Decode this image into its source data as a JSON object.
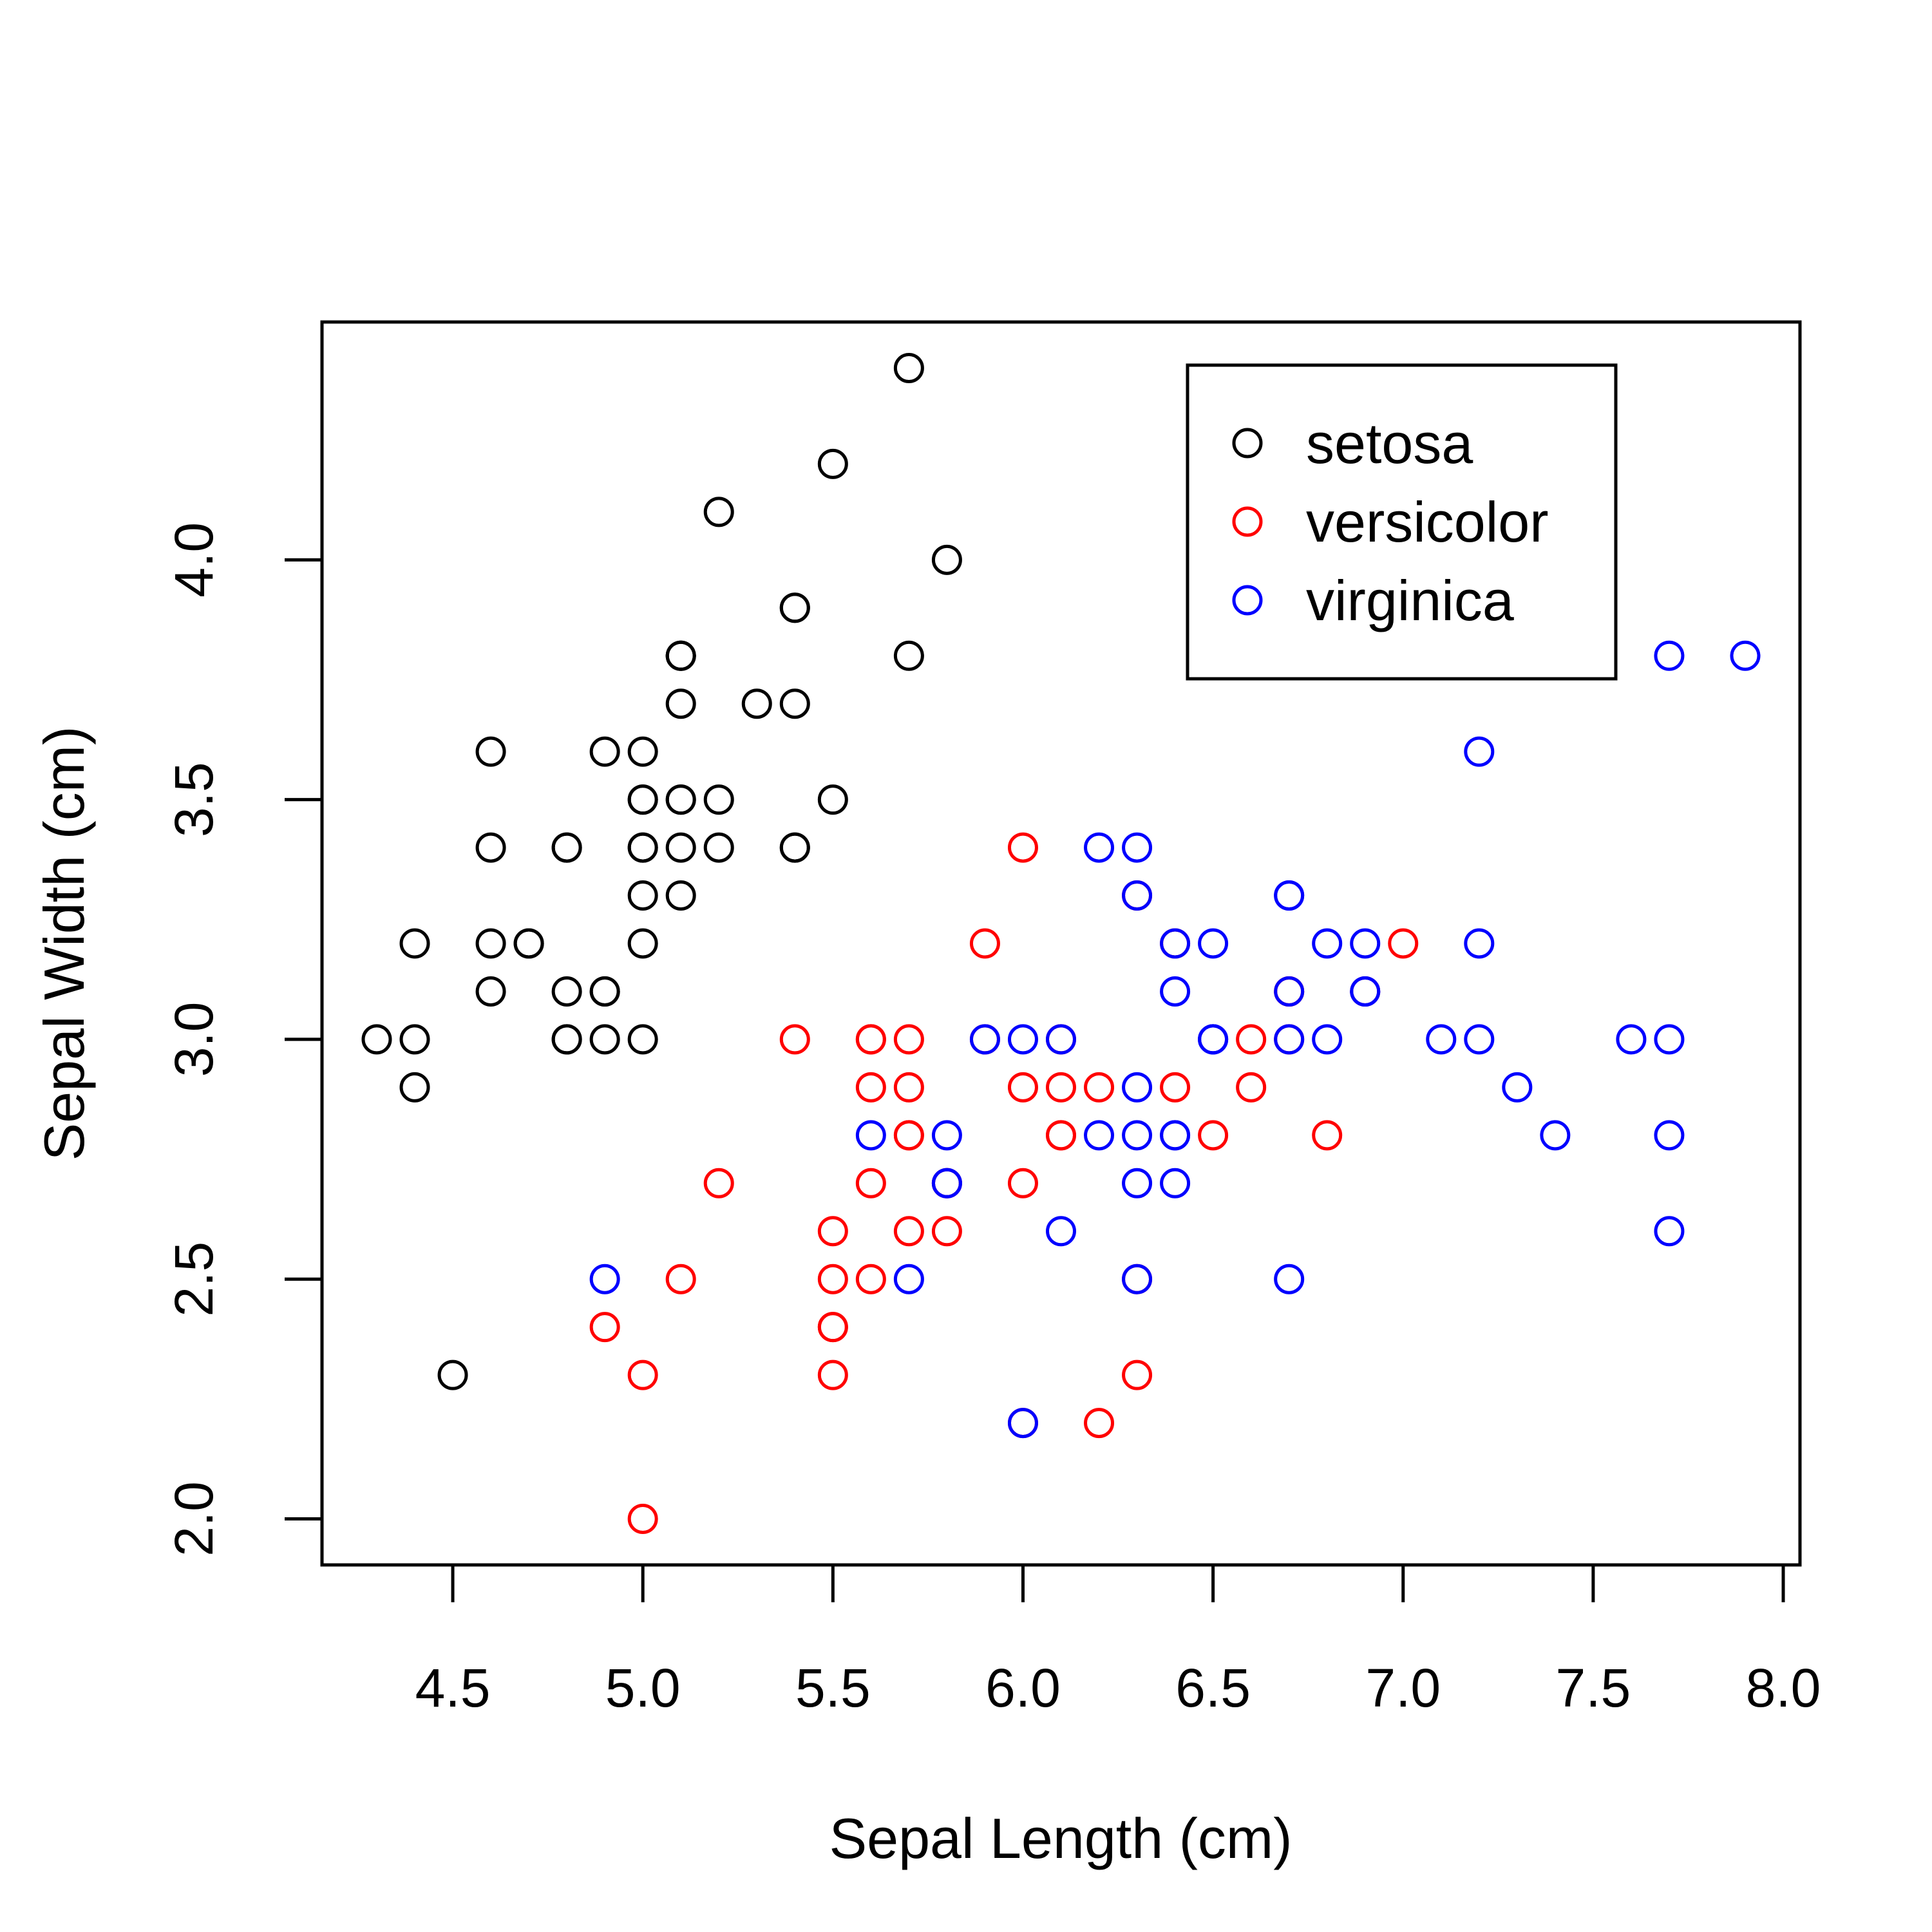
{
  "chart_data": {
    "type": "scatter",
    "title": "",
    "xlabel": "Sepal Length (cm)",
    "ylabel": "Sepal Width (cm)",
    "xlim": [
      4.3,
      7.9
    ],
    "ylim": [
      2.0,
      4.4
    ],
    "xticks": [
      "4.5",
      "5.0",
      "5.5",
      "6.0",
      "6.5",
      "7.0",
      "7.5",
      "8.0"
    ],
    "yticks": [
      "2.0",
      "2.5",
      "3.0",
      "3.5",
      "4.0"
    ],
    "grid": false,
    "legend_position": "top-right",
    "series": [
      {
        "name": "setosa",
        "color": "#000000",
        "marker": "open-circle",
        "points": [
          [
            5.1,
            3.5
          ],
          [
            4.9,
            3.0
          ],
          [
            4.7,
            3.2
          ],
          [
            4.6,
            3.1
          ],
          [
            5.0,
            3.6
          ],
          [
            5.4,
            3.9
          ],
          [
            4.6,
            3.4
          ],
          [
            5.0,
            3.4
          ],
          [
            4.4,
            2.9
          ],
          [
            4.9,
            3.1
          ],
          [
            5.4,
            3.7
          ],
          [
            4.8,
            3.4
          ],
          [
            4.8,
            3.0
          ],
          [
            4.3,
            3.0
          ],
          [
            5.8,
            4.0
          ],
          [
            5.7,
            4.4
          ],
          [
            5.4,
            3.9
          ],
          [
            5.1,
            3.5
          ],
          [
            5.7,
            3.8
          ],
          [
            5.1,
            3.8
          ],
          [
            5.4,
            3.4
          ],
          [
            5.1,
            3.7
          ],
          [
            4.6,
            3.6
          ],
          [
            5.1,
            3.3
          ],
          [
            4.8,
            3.4
          ],
          [
            5.0,
            3.0
          ],
          [
            5.0,
            3.4
          ],
          [
            5.2,
            3.5
          ],
          [
            5.2,
            3.4
          ],
          [
            4.7,
            3.2
          ],
          [
            4.8,
            3.1
          ],
          [
            5.4,
            3.4
          ],
          [
            5.2,
            4.1
          ],
          [
            5.5,
            4.2
          ],
          [
            4.9,
            3.1
          ],
          [
            5.0,
            3.2
          ],
          [
            5.5,
            3.5
          ],
          [
            4.9,
            3.6
          ],
          [
            4.4,
            3.0
          ],
          [
            5.1,
            3.4
          ],
          [
            5.0,
            3.5
          ],
          [
            4.5,
            2.3
          ],
          [
            4.4,
            3.2
          ],
          [
            5.0,
            3.5
          ],
          [
            5.1,
            3.8
          ],
          [
            4.8,
            3.0
          ],
          [
            5.1,
            3.8
          ],
          [
            4.6,
            3.2
          ],
          [
            5.3,
            3.7
          ],
          [
            5.0,
            3.3
          ]
        ]
      },
      {
        "name": "versicolor",
        "color": "#ff0000",
        "marker": "open-circle",
        "points": [
          [
            7.0,
            3.2
          ],
          [
            6.4,
            3.2
          ],
          [
            6.9,
            3.1
          ],
          [
            5.5,
            2.3
          ],
          [
            6.5,
            2.8
          ],
          [
            5.7,
            2.8
          ],
          [
            6.3,
            3.3
          ],
          [
            4.9,
            2.4
          ],
          [
            6.6,
            2.9
          ],
          [
            5.2,
            2.7
          ],
          [
            5.0,
            2.0
          ],
          [
            5.9,
            3.0
          ],
          [
            6.0,
            2.2
          ],
          [
            6.1,
            2.9
          ],
          [
            5.6,
            2.9
          ],
          [
            6.7,
            3.1
          ],
          [
            5.6,
            3.0
          ],
          [
            5.8,
            2.7
          ],
          [
            6.2,
            2.2
          ],
          [
            5.6,
            2.5
          ],
          [
            5.9,
            3.2
          ],
          [
            6.1,
            2.8
          ],
          [
            6.3,
            2.5
          ],
          [
            6.1,
            2.8
          ],
          [
            6.4,
            2.9
          ],
          [
            6.6,
            3.0
          ],
          [
            6.8,
            2.8
          ],
          [
            6.7,
            3.0
          ],
          [
            6.0,
            2.9
          ],
          [
            5.7,
            2.6
          ],
          [
            5.5,
            2.4
          ],
          [
            5.5,
            2.4
          ],
          [
            5.8,
            2.7
          ],
          [
            6.0,
            2.7
          ],
          [
            5.4,
            3.0
          ],
          [
            6.0,
            3.4
          ],
          [
            6.7,
            3.1
          ],
          [
            6.3,
            2.3
          ],
          [
            5.6,
            3.0
          ],
          [
            5.5,
            2.5
          ],
          [
            5.5,
            2.6
          ],
          [
            6.1,
            3.0
          ],
          [
            5.8,
            2.6
          ],
          [
            5.0,
            2.3
          ],
          [
            5.6,
            2.7
          ],
          [
            5.7,
            3.0
          ],
          [
            5.7,
            2.9
          ],
          [
            6.2,
            2.9
          ],
          [
            5.1,
            2.5
          ],
          [
            5.7,
            2.8
          ]
        ]
      },
      {
        "name": "virginica",
        "color": "#0000ff",
        "marker": "open-circle",
        "points": [
          [
            6.3,
            3.3
          ],
          [
            5.8,
            2.7
          ],
          [
            7.1,
            3.0
          ],
          [
            6.3,
            2.9
          ],
          [
            6.5,
            3.0
          ],
          [
            7.6,
            3.0
          ],
          [
            4.9,
            2.5
          ],
          [
            7.3,
            2.9
          ],
          [
            6.7,
            2.5
          ],
          [
            7.2,
            3.6
          ],
          [
            6.5,
            3.2
          ],
          [
            6.4,
            2.7
          ],
          [
            6.8,
            3.0
          ],
          [
            5.7,
            2.5
          ],
          [
            5.8,
            2.8
          ],
          [
            6.4,
            3.2
          ],
          [
            6.5,
            3.0
          ],
          [
            7.7,
            3.8
          ],
          [
            7.7,
            2.6
          ],
          [
            6.0,
            2.2
          ],
          [
            6.9,
            3.2
          ],
          [
            5.6,
            2.8
          ],
          [
            7.7,
            2.8
          ],
          [
            6.3,
            2.7
          ],
          [
            6.7,
            3.3
          ],
          [
            7.2,
            3.2
          ],
          [
            6.2,
            2.8
          ],
          [
            6.1,
            3.0
          ],
          [
            6.4,
            2.8
          ],
          [
            7.2,
            3.0
          ],
          [
            7.4,
            2.8
          ],
          [
            7.9,
            3.8
          ],
          [
            6.4,
            2.8
          ],
          [
            6.3,
            2.8
          ],
          [
            6.1,
            2.6
          ],
          [
            7.7,
            3.0
          ],
          [
            6.3,
            3.4
          ],
          [
            6.4,
            3.1
          ],
          [
            6.0,
            3.0
          ],
          [
            6.9,
            3.1
          ],
          [
            6.7,
            3.1
          ],
          [
            6.9,
            3.1
          ],
          [
            5.8,
            2.7
          ],
          [
            6.8,
            3.2
          ],
          [
            6.7,
            3.3
          ],
          [
            6.7,
            3.0
          ],
          [
            6.3,
            2.5
          ],
          [
            6.5,
            3.0
          ],
          [
            6.2,
            3.4
          ],
          [
            5.9,
            3.0
          ]
        ]
      }
    ]
  }
}
